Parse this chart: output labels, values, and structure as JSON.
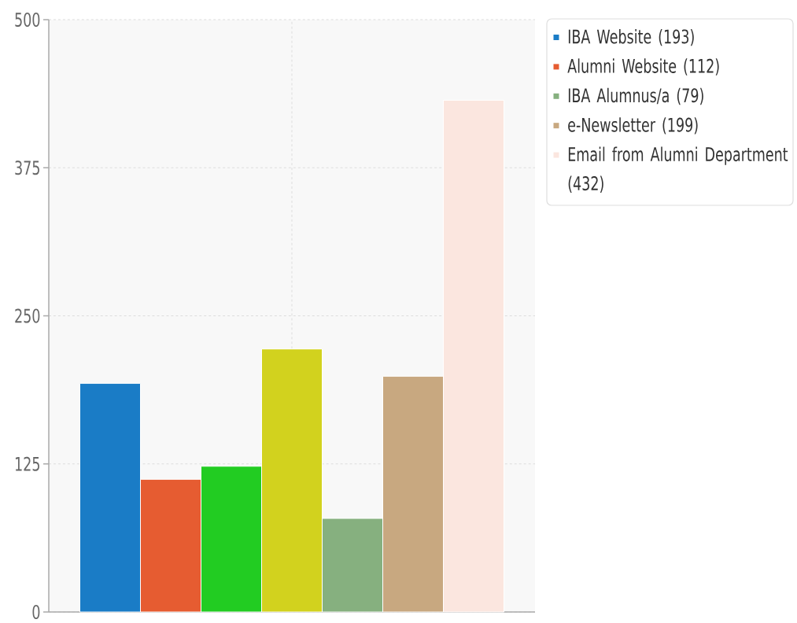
{
  "chart_data": {
    "type": "bar",
    "categories": [
      null
    ],
    "series": [
      {
        "name": "IBA Website (193)",
        "color": "#1a7cc6",
        "values": [
          193
        ]
      },
      {
        "name": "Alumni Website (112)",
        "color": "#e65c31",
        "values": [
          112
        ]
      },
      {
        "color": "#22cc22",
        "values": [
          123
        ]
      },
      {
        "color": "#d2d21e",
        "values": [
          222
        ]
      },
      {
        "name": "IBA Alumnus/a (79)",
        "color": "#86b07f",
        "values": [
          79
        ]
      },
      {
        "name": "e-Newsletter (199)",
        "color": "#c8a880",
        "values": [
          199
        ]
      },
      {
        "name": "Email from Alumni Department (432)",
        "color": "#fbe6df",
        "values": [
          432
        ]
      }
    ],
    "ylim": [
      0,
      500
    ],
    "yticks": [
      0,
      125,
      250,
      375,
      500
    ],
    "grid": true,
    "legend": "top right",
    "tick_labels": "y"
  }
}
